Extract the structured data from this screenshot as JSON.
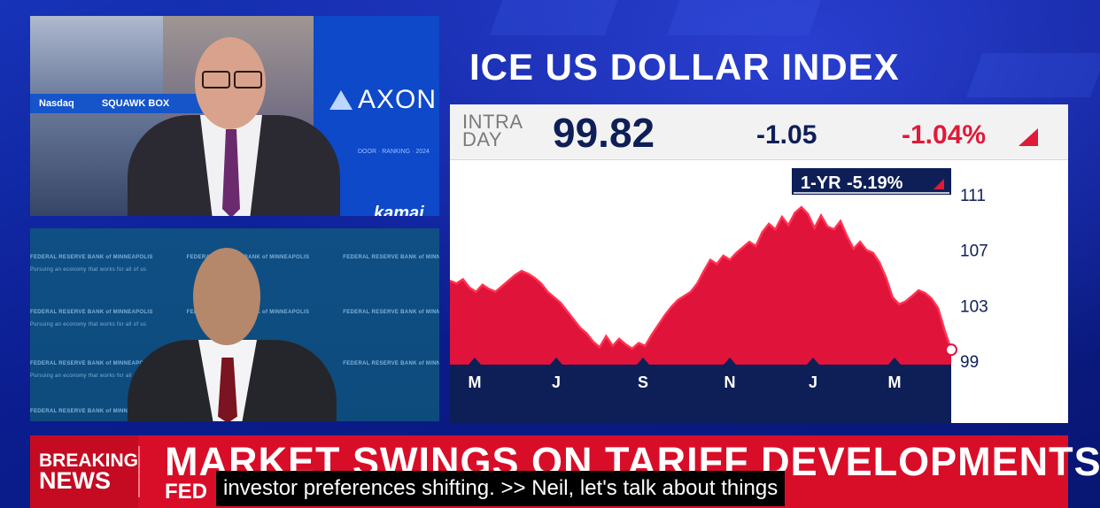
{
  "top_panel": {
    "ticker_left": "Nasdaq",
    "ticker_right": "SQUAWK BOX",
    "sponsor": "AXON",
    "sponsor_small": "DOOR · RANKING · 2024",
    "sponsor2": "kamai"
  },
  "bottom_panel": {
    "backdrop_text": "FEDERAL RESERVE BANK of MINNEAPOLIS",
    "backdrop_tagline": "Pursuing an economy that works for all of us"
  },
  "headline": "ICE US DOLLAR INDEX",
  "quote": {
    "intraday_label_1": "INTRA",
    "intraday_label_2": "DAY",
    "price": "99.82",
    "change": "-1.05",
    "change_pct": "-1.04%"
  },
  "range_badge": {
    "period": "1-YR",
    "change": "-5.19%"
  },
  "chart_data": {
    "type": "area",
    "title": "ICE US DOLLAR INDEX",
    "period": "1-YR",
    "x_tick_labels": [
      "M",
      "J",
      "S",
      "N",
      "J",
      "M"
    ],
    "y_tick_labels": [
      "111",
      "107",
      "103",
      "99"
    ],
    "y_ticks": [
      111,
      107,
      103,
      99
    ],
    "ylim": [
      98,
      112
    ],
    "series": [
      {
        "values": [
          104.8,
          104.6,
          104.9,
          104.3,
          104.0,
          104.5,
          104.2,
          104.0,
          104.4,
          104.8,
          105.2,
          105.5,
          105.3,
          105.0,
          104.6,
          104.0,
          103.6,
          103.2,
          102.6,
          102.0,
          101.4,
          101.0,
          100.4,
          100.0,
          100.8,
          100.1,
          100.6,
          100.2,
          99.9,
          100.3,
          100.1,
          100.9,
          101.6,
          102.3,
          102.9,
          103.4,
          103.7,
          104.0,
          104.6,
          105.5,
          106.3,
          106.0,
          106.6,
          106.3,
          106.8,
          107.2,
          107.6,
          107.3,
          108.3,
          108.9,
          108.5,
          109.4,
          108.8,
          109.7,
          110.1,
          109.6,
          108.6,
          109.5,
          108.7,
          108.5,
          109.1,
          108.0,
          107.1,
          107.6,
          107.0,
          106.8,
          106.1,
          105.0,
          103.6,
          103.1,
          103.3,
          103.7,
          104.1,
          103.9,
          103.5,
          102.8,
          101.2,
          99.82
        ]
      }
    ],
    "last_value": 99.82,
    "colors": {
      "fill": "#e0133a",
      "line": "#ff3352",
      "axis_band": "#0e1f57",
      "last_dot": "#ffffff"
    }
  },
  "breaking": {
    "label_1": "BREAKING",
    "label_2": "NEWS",
    "title": "MARKET SWINGS ON TARIFF DEVELOPMENTS",
    "subtitle": "FED"
  },
  "caption": "investor preferences shifting. >> Neil, let's talk about things"
}
